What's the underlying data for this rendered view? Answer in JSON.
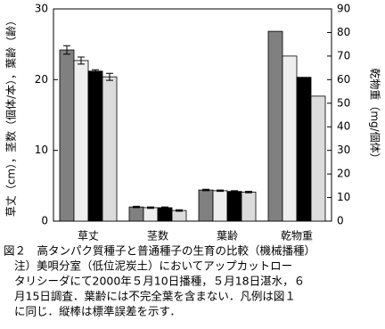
{
  "chart_data": {
    "type": "bar",
    "y_label": "草丈（cm），茎数（個体/本），葉齢（齢）",
    "y2_label": "乾物重（mg/個体）",
    "categories": [
      "草丈",
      "茎数",
      "葉齢",
      "乾物重"
    ],
    "ylim": [
      0,
      30
    ],
    "yticks": [
      0,
      10,
      20,
      30
    ],
    "y2lim": [
      0,
      90
    ],
    "y2ticks": [
      0,
      10,
      20,
      30,
      40,
      50,
      60,
      70,
      80,
      90
    ],
    "series": [
      {
        "color": "#808080",
        "values": [
          24.2,
          2.0,
          4.4,
          null
        ],
        "errors": [
          0.6,
          0.1,
          0.1,
          null
        ]
      },
      {
        "color": "#eeeeee",
        "values": [
          22.7,
          1.9,
          4.3,
          null
        ],
        "errors": [
          0.5,
          0.1,
          0.1,
          null
        ]
      },
      {
        "color": "#000000",
        "values": [
          21.2,
          1.9,
          4.2,
          null
        ],
        "errors": [
          0.2,
          0.1,
          0.1,
          null
        ]
      },
      {
        "color": "#dcdcdc",
        "values": [
          20.4,
          1.5,
          4.1,
          null
        ],
        "errors": [
          0.5,
          0.1,
          0.1,
          null
        ]
      },
      {
        "color": "#808080",
        "axis": "y2",
        "values": [
          null,
          null,
          null,
          80.5
        ]
      },
      {
        "color": "#eeeeee",
        "axis": "y2",
        "values": [
          null,
          null,
          null,
          70
        ]
      },
      {
        "color": "#000000",
        "axis": "y2",
        "values": [
          null,
          null,
          null,
          61
        ]
      },
      {
        "color": "#dcdcdc",
        "axis": "y2",
        "values": [
          null,
          null,
          null,
          53
        ]
      }
    ],
    "caption": [
      "図２　高タンパク質種子と普通種子の生育の比較（機械播種）",
      "注）美唄分室（低位泥炭土）においてアップカットロー",
      "タリシーダにて2000年５月10日播種，５月18日湛水，６",
      "月15日調査．葉齢には不完全葉を含まない．凡例は図１",
      "に同じ．縦棒は標準誤差を示す．"
    ]
  }
}
